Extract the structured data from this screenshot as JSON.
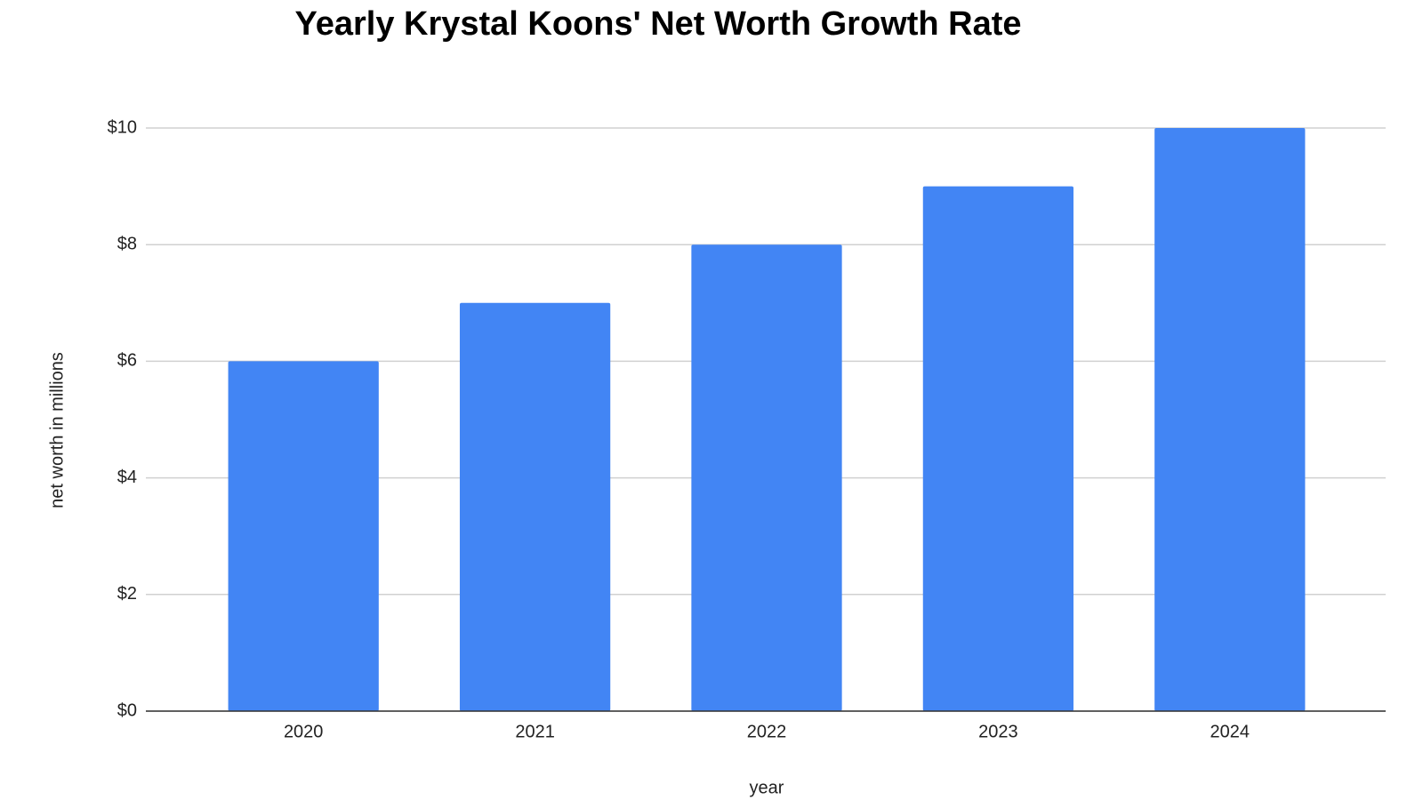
{
  "chart_data": {
    "type": "bar",
    "title": "Yearly Krystal Koons' Net Worth Growth Rate",
    "x_label": "year",
    "y_label": "net worth in millions",
    "categories": [
      "2020",
      "2021",
      "2022",
      "2023",
      "2024"
    ],
    "values": [
      6,
      7,
      8,
      9,
      10
    ],
    "color": "#4285f4",
    "ylim": [
      0,
      10
    ],
    "yticks": [
      {
        "value": 0,
        "label": "$0"
      },
      {
        "value": 2,
        "label": "$2"
      },
      {
        "value": 4,
        "label": "$4"
      },
      {
        "value": 6,
        "label": "$6"
      },
      {
        "value": 8,
        "label": "$8"
      },
      {
        "value": 10,
        "label": "$10"
      }
    ],
    "grid": true
  }
}
